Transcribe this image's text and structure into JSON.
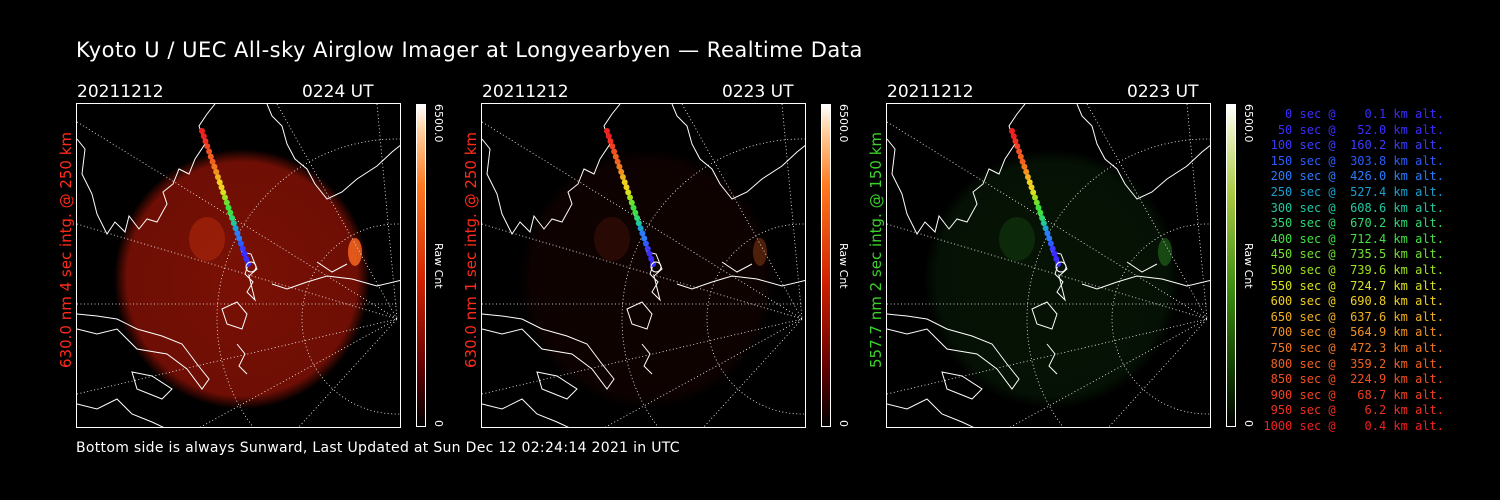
{
  "title": "Kyoto U / UEC All-sky Airglow Imager at Longyearbyen — Realtime Data",
  "footer": "Bottom side is always Sunward, Last Updated at Sun Dec 12 02:24:14 2021 in UTC",
  "panels": [
    {
      "date": "20211212",
      "time": "0224 UT",
      "ylabel": "630.0 nm 4 sec intg. @ 250 km",
      "ylabel_color": "#ff2a1a",
      "cbar_max": "6500.0",
      "cbar_min": "0",
      "cbar_label": "Raw Cnt",
      "colormap": "red",
      "image_color": "#7a1005",
      "intensity": 1.0
    },
    {
      "date": "20211212",
      "time": "0223 UT",
      "ylabel": "630.0 nm 1 sec intg. @ 250 km",
      "ylabel_color": "#ff2a1a",
      "cbar_max": "6500.0",
      "cbar_min": "0",
      "cbar_label": "Raw Cnt",
      "colormap": "red",
      "image_color": "#2a0603",
      "intensity": 0.35
    },
    {
      "date": "20211212",
      "time": "0223 UT",
      "ylabel": "557.7 nm 2 sec intg. @ 150 km",
      "ylabel_color": "#3bd12a",
      "cbar_max": "6500.0",
      "cbar_min": "0",
      "cbar_label": "Raw Cnt",
      "colormap": "green",
      "image_color": "#0c2a0a",
      "intensity": 0.45
    }
  ],
  "legend": [
    {
      "text": "   0 sec @    0.1 km alt.",
      "color": "#3a2cff"
    },
    {
      "text": "  50 sec @   52.0 km alt.",
      "color": "#3a2cff"
    },
    {
      "text": " 100 sec @  160.2 km alt.",
      "color": "#3a3cff"
    },
    {
      "text": " 150 sec @  303.8 km alt.",
      "color": "#2a5cff"
    },
    {
      "text": " 200 sec @  426.0 km alt.",
      "color": "#2a7cff"
    },
    {
      "text": " 250 sec @  527.4 km alt.",
      "color": "#1aa0d0"
    },
    {
      "text": " 300 sec @  608.6 km alt.",
      "color": "#20c8a0"
    },
    {
      "text": " 350 sec @  670.2 km alt.",
      "color": "#30d870"
    },
    {
      "text": " 400 sec @  712.4 km alt.",
      "color": "#40e040"
    },
    {
      "text": " 450 sec @  735.5 km alt.",
      "color": "#70e030"
    },
    {
      "text": " 500 sec @  739.6 km alt.",
      "color": "#a0e020"
    },
    {
      "text": " 550 sec @  724.7 km alt.",
      "color": "#d8e020"
    },
    {
      "text": " 600 sec @  690.8 km alt.",
      "color": "#f0d020"
    },
    {
      "text": " 650 sec @  637.6 km alt.",
      "color": "#f0b020"
    },
    {
      "text": " 700 sec @  564.9 km alt.",
      "color": "#f09020"
    },
    {
      "text": " 750 sec @  472.3 km alt.",
      "color": "#f07820"
    },
    {
      "text": " 800 sec @  359.2 km alt.",
      "color": "#f06020"
    },
    {
      "text": " 850 sec @  224.9 km alt.",
      "color": "#f05020"
    },
    {
      "text": " 900 sec @   68.7 km alt.",
      "color": "#f04020"
    },
    {
      "text": " 950 sec @    6.2 km alt.",
      "color": "#f03020"
    },
    {
      "text": "1000 sec @    0.4 km alt.",
      "color": "#f02020"
    }
  ]
}
